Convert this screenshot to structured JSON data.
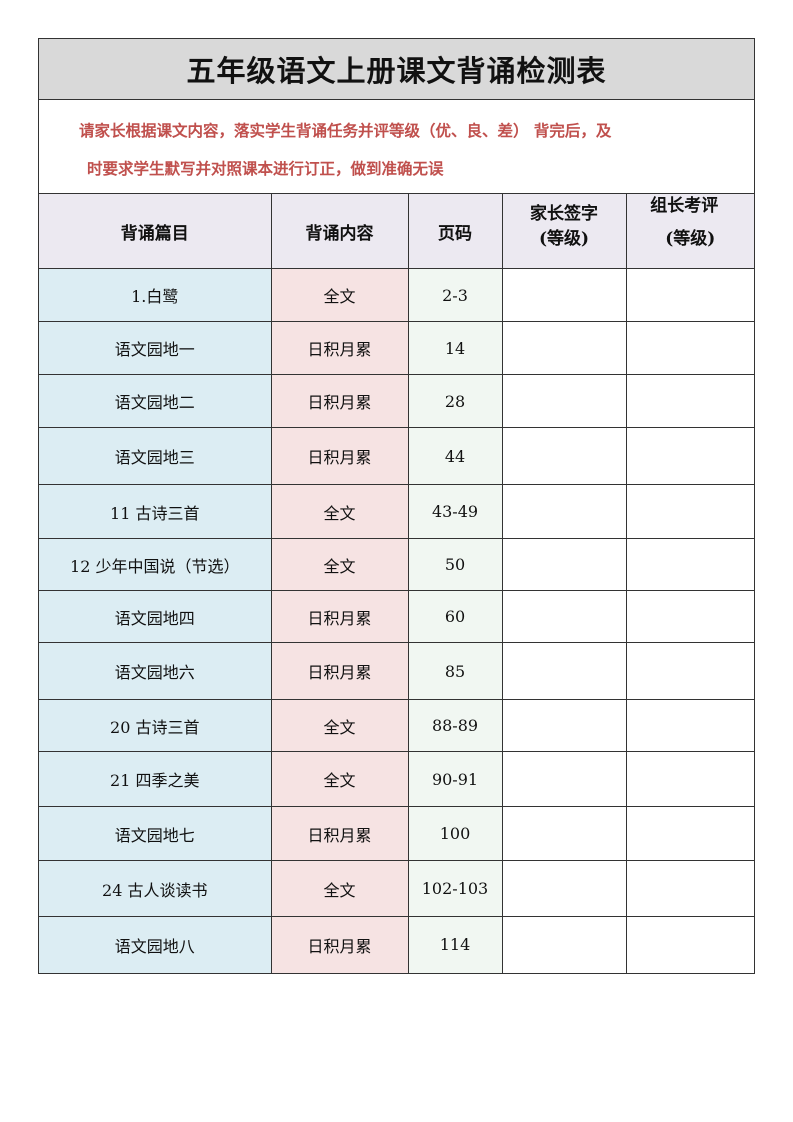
{
  "title": "五年级语文上册课文背诵检测表",
  "note": [
    "请家长根据课文内容，落实学生背诵任务并评等级（优、良、差） 背完后，及",
    "时要求学生默写并对照课本进行订正，做到准确无误"
  ],
  "headers": [
    "背诵篇目",
    "背诵内容",
    "页码",
    "家长签字（等级）",
    "组长考评（等级）"
  ],
  "header_lines": {
    "parent": [
      "家长签字",
      "(等级)"
    ],
    "leader": [
      "组长考评",
      "(等级)"
    ]
  },
  "rows": [
    {
      "title": "1.白鹭",
      "content": "全文",
      "page": "2-3"
    },
    {
      "title": "语文园地一",
      "content": "日积月累",
      "page": "14"
    },
    {
      "title": "语文园地二",
      "content": "日积月累",
      "page": "28"
    },
    {
      "title": "语文园地三",
      "content": "日积月累",
      "page": "44"
    },
    {
      "title": "11 古诗三首",
      "content": "全文",
      "page": "43-49"
    },
    {
      "title": "12 少年中国说（节选）",
      "content": "全文",
      "page": "50"
    },
    {
      "title": "语文园地四",
      "content": "日积月累",
      "page": "60"
    },
    {
      "title": "语文园地六",
      "content": "日积月累",
      "page": "85"
    },
    {
      "title": "20 古诗三首",
      "content": "全文",
      "page": "88-89"
    },
    {
      "title": "21 四季之美",
      "content": "全文",
      "page": "90-91"
    },
    {
      "title": "语文园地七",
      "content": "日积月累",
      "page": "100"
    },
    {
      "title": "24 古人谈读书",
      "content": "全文",
      "page": "102-103"
    },
    {
      "title": "语文园地八",
      "content": "日积月累",
      "page": "114"
    }
  ]
}
